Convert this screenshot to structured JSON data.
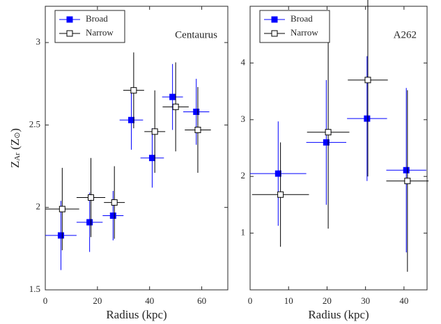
{
  "chart_data": [
    {
      "type": "errorbar-scatter",
      "xlabel": "Radius (kpc)",
      "ylabel": [
        "Z",
        "Ar",
        " (Z",
        "⊙",
        ")"
      ],
      "annotation": "Centaurus",
      "legend": "upper left",
      "xlim": [
        0,
        70
      ],
      "xticks": [
        0,
        20,
        40,
        60
      ],
      "ylim": [
        1.5,
        3.22
      ],
      "yticks": [
        1.5,
        2,
        2.5,
        3
      ],
      "series": [
        {
          "name": "Broad",
          "color": "#0000ff",
          "marker": "filled",
          "x": [
            6,
            17,
            26,
            33,
            41,
            48.8,
            57.9
          ],
          "values": [
            1.83,
            1.91,
            1.95,
            2.53,
            2.3,
            2.67,
            2.58
          ],
          "xerr": [
            6,
            5,
            4,
            4.5,
            4.5,
            4,
            5
          ],
          "yerr": [
            0.21,
            0.18,
            0.15,
            0.18,
            0.18,
            0.2,
            0.2
          ]
        },
        {
          "name": "Narrow",
          "color": "#000000",
          "marker": "open",
          "x": [
            6.5,
            17.5,
            26.5,
            33.9,
            42,
            50,
            58.5
          ],
          "values": [
            1.99,
            2.06,
            2.03,
            2.71,
            2.46,
            2.61,
            2.47
          ],
          "xerr": [
            6.5,
            5.5,
            4,
            4,
            4,
            5,
            5
          ],
          "yerr": [
            0.25,
            0.24,
            0.22,
            0.23,
            0.25,
            0.27,
            0.26
          ]
        }
      ]
    },
    {
      "type": "errorbar-scatter",
      "xlabel": "Radius (kpc)",
      "annotation": "A262",
      "legend": "upper left",
      "xlim": [
        0,
        46
      ],
      "xticks": [
        0,
        10,
        20,
        30,
        40
      ],
      "ylim": [
        0,
        5
      ],
      "yticks": [
        1,
        2,
        3,
        4
      ],
      "series": [
        {
          "name": "Broad",
          "color": "#0000ff",
          "marker": "filled",
          "x": [
            7.3,
            19.8,
            30.4,
            40.6
          ],
          "values": [
            2.05,
            2.6,
            3.02,
            2.11
          ],
          "xerr": [
            7.3,
            5.2,
            5.2,
            5.2
          ],
          "yerr": [
            0.92,
            1.1,
            1.1,
            1.45
          ]
        },
        {
          "name": "Narrow",
          "color": "#000000",
          "marker": "open",
          "x": [
            7.9,
            20.3,
            30.6,
            40.9
          ],
          "values": [
            1.68,
            2.78,
            3.7,
            1.92
          ],
          "xerr": [
            7.4,
            5.5,
            5.2,
            5.5
          ],
          "yerr": [
            0.92,
            1.7,
            1.7,
            1.6
          ]
        }
      ]
    }
  ]
}
